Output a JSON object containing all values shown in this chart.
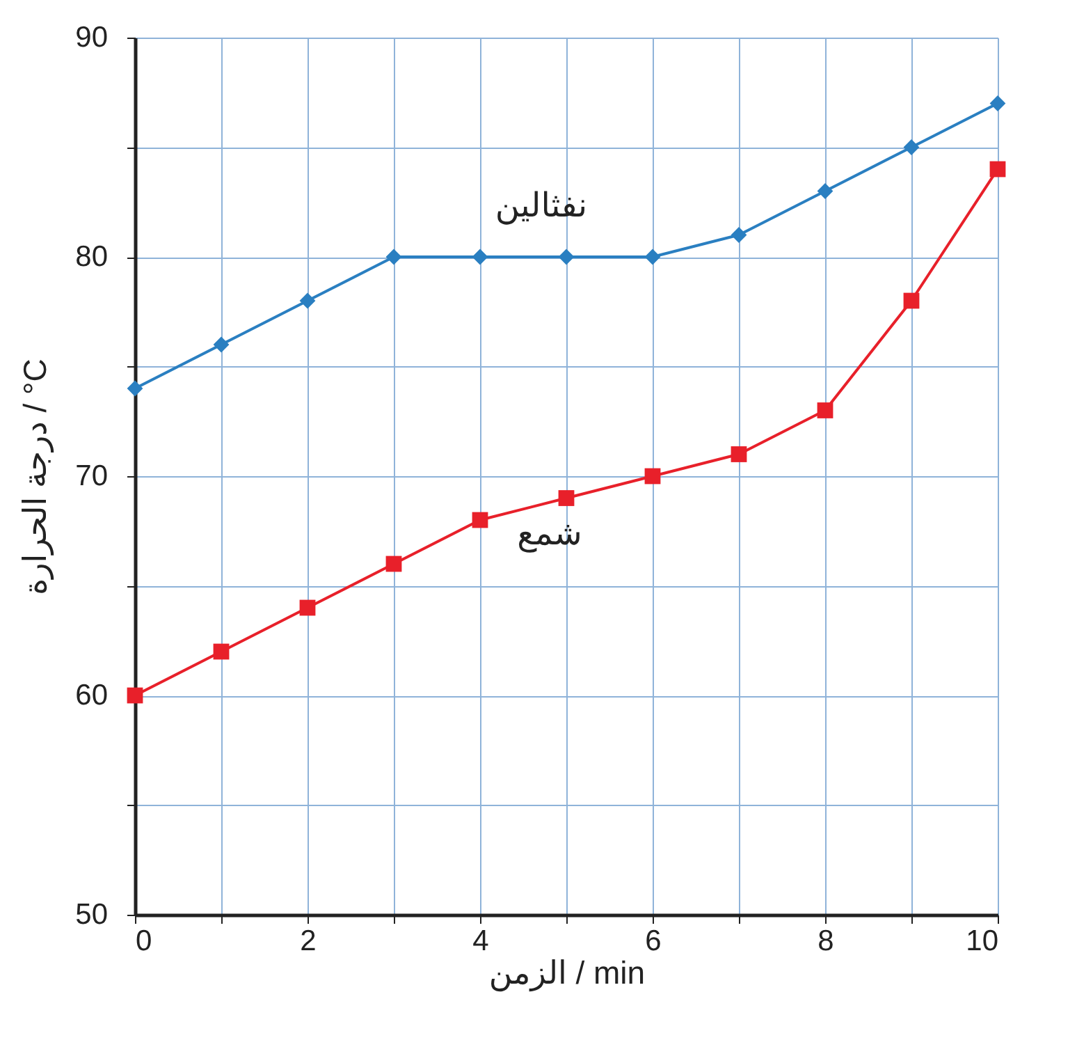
{
  "chart_data": {
    "type": "line",
    "xlabel": "الزمن / min",
    "ylabel": "درجة الحرارة / °C",
    "x": [
      0,
      1,
      2,
      3,
      4,
      5,
      6,
      7,
      8,
      9,
      10
    ],
    "series": [
      {
        "name": "نفثالين",
        "color": "#2a7fc1",
        "marker": "diamond",
        "values": [
          74,
          76,
          78,
          80,
          80,
          80,
          80,
          81,
          83,
          85,
          87
        ]
      },
      {
        "name": "شمع",
        "color": "#e8202a",
        "marker": "square",
        "values": [
          60,
          62,
          64,
          66,
          68,
          69,
          70,
          71,
          73,
          78,
          84
        ]
      }
    ],
    "xlim": [
      0,
      10
    ],
    "xticks": [
      0,
      {
        "value": 1,
        "label": null
      },
      2,
      {
        "value": 3,
        "label": null
      },
      4,
      {
        "value": 5,
        "label": null
      },
      6,
      {
        "value": 7,
        "label": null
      },
      8,
      {
        "value": 9,
        "label": null
      },
      10
    ],
    "ylim": [
      50,
      90
    ],
    "yticks": [
      50,
      {
        "value": 55,
        "label": null
      },
      60,
      {
        "value": 65,
        "label": null
      },
      70,
      {
        "value": 75,
        "label": null
      },
      80,
      {
        "value": 85,
        "label": null
      },
      90
    ],
    "grid": true,
    "legend": false,
    "line_style": "solid"
  }
}
